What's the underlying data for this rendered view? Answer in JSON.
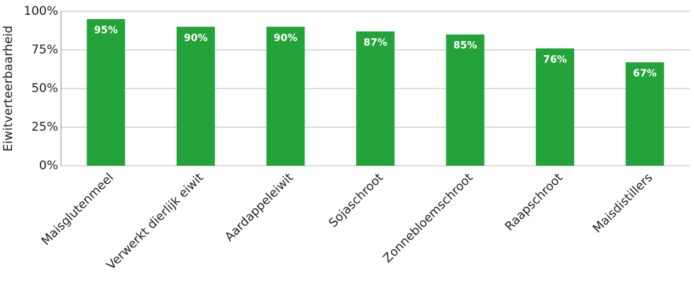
{
  "chart_data": {
    "type": "bar",
    "y_label": "Eiwitverteerbaarheid",
    "categories": [
      "Maisglutenmeel",
      "Verwerkt dierlijk eiwit",
      "Aardappeleiwit",
      "Sojaschroot",
      "Zonnebloemschroot",
      "Raapschroot",
      "Maisdistillers"
    ],
    "values": [
      95,
      90,
      90,
      87,
      85,
      76,
      67
    ],
    "value_labels": [
      "95%",
      "90%",
      "90%",
      "87%",
      "85%",
      "76%",
      "67%"
    ],
    "color": "#24a33a",
    "ylim": [
      0,
      100
    ],
    "yticks": [
      {
        "value": 0,
        "label": "0%"
      },
      {
        "value": 25,
        "label": "25%"
      },
      {
        "value": 50,
        "label": "50%"
      },
      {
        "value": 75,
        "label": "75%"
      },
      {
        "value": 100,
        "label": "100%"
      }
    ],
    "grid": true
  }
}
